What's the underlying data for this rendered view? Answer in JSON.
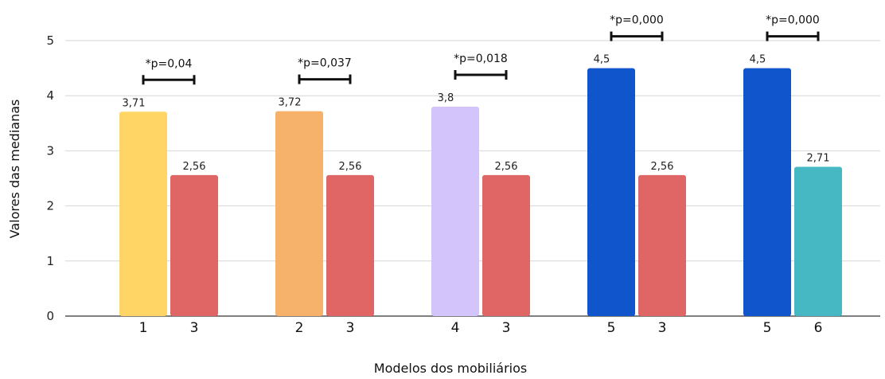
{
  "chart_data": {
    "type": "bar",
    "ylabel": "Valores das medianas",
    "xlabel": "Modelos dos mobiliários",
    "ylim": [
      0,
      5
    ],
    "yticks": [
      "0",
      "1",
      "2",
      "3",
      "4",
      "5"
    ],
    "grid": true,
    "groups": [
      {
        "bars": [
          {
            "category": "1",
            "value": 3.71,
            "label": "3,71",
            "color": "#ffd666"
          },
          {
            "category": "3",
            "value": 2.56,
            "label": "2,56",
            "color": "#e06666"
          }
        ],
        "p_value": "*p=0,04"
      },
      {
        "bars": [
          {
            "category": "2",
            "value": 3.72,
            "label": "3,72",
            "color": "#f6b26b"
          },
          {
            "category": "3",
            "value": 2.56,
            "label": "2,56",
            "color": "#e06666"
          }
        ],
        "p_value": "*p=0,037"
      },
      {
        "bars": [
          {
            "category": "4",
            "value": 3.8,
            "label": "3,8",
            "color": "#d4c4fc"
          },
          {
            "category": "3",
            "value": 2.56,
            "label": "2,56",
            "color": "#e06666"
          }
        ],
        "p_value": "*p=0,018"
      },
      {
        "bars": [
          {
            "category": "5",
            "value": 4.5,
            "label": "4,5",
            "color": "#1155cc"
          },
          {
            "category": "3",
            "value": 2.56,
            "label": "2,56",
            "color": "#e06666"
          }
        ],
        "p_value": "*p=0,000"
      },
      {
        "bars": [
          {
            "category": "5",
            "value": 4.5,
            "label": "4,5",
            "color": "#1155cc"
          },
          {
            "category": "6",
            "value": 2.71,
            "label": "2,71",
            "color": "#45b8c4"
          }
        ],
        "p_value": "*p=0,000"
      }
    ]
  }
}
